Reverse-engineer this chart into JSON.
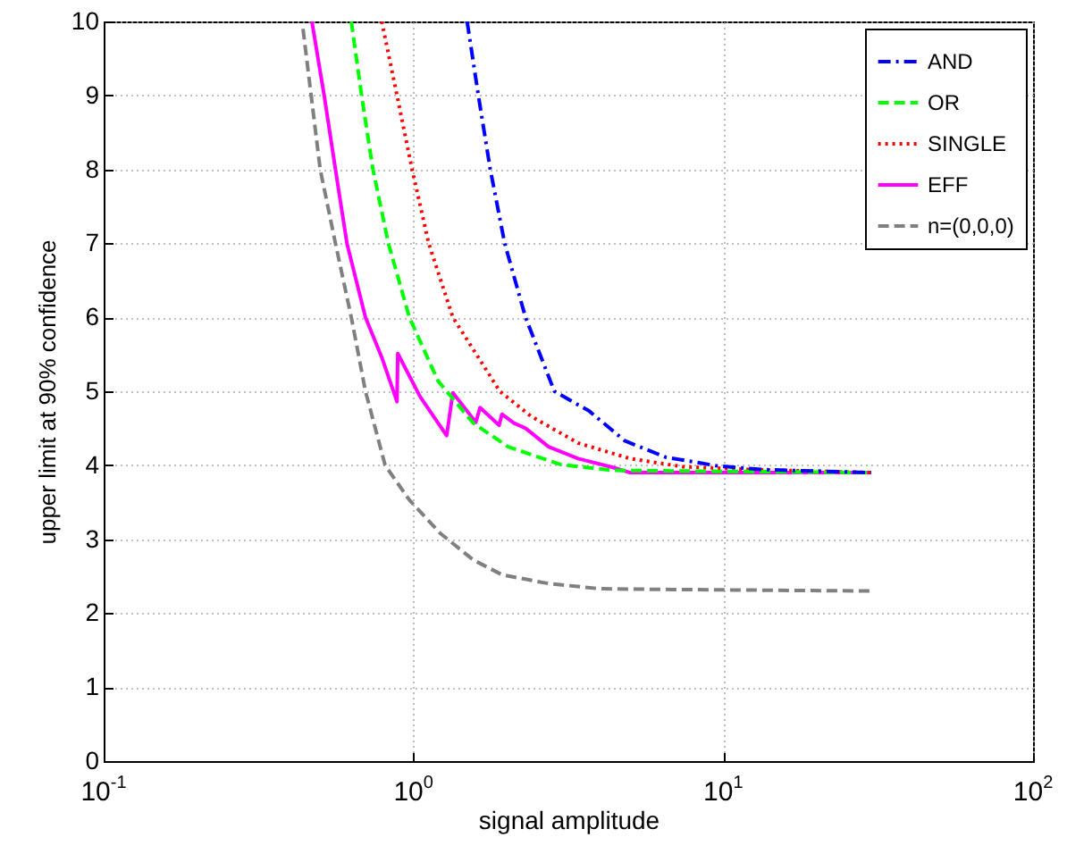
{
  "chart_data": {
    "type": "line",
    "xlabel": "signal amplitude",
    "ylabel": "upper limit at 90% confidence",
    "log": "x",
    "xlim": [
      0.1,
      100
    ],
    "ylim": [
      0,
      10
    ],
    "xticks": [
      {
        "value": 0.1,
        "label": "10$^{-1}$"
      },
      {
        "value": 1,
        "label": "10$^{0}$"
      },
      {
        "value": 10,
        "label": "10$^{1}$"
      },
      {
        "value": 100,
        "label": "10$^{2}$"
      }
    ],
    "yticks": [
      0,
      1,
      2,
      3,
      4,
      5,
      6,
      7,
      8,
      9,
      10
    ],
    "grid": true,
    "legend": "top right",
    "series": [
      {
        "name": "AND",
        "color": "#0000ff",
        "line_style": "dashdot",
        "x": [
          1.49,
          1.62,
          1.77,
          1.97,
          2.3,
          2.85,
          3.7,
          4.81,
          6.51,
          9.6,
          13.5,
          30
        ],
        "values": [
          10,
          9,
          8,
          7,
          6,
          5,
          4.73,
          4.33,
          4.11,
          3.99,
          3.94,
          3.9
        ]
      },
      {
        "name": "OR",
        "color": "#00ff00",
        "line_style": "dashed",
        "x": [
          0.63,
          0.68,
          0.74,
          0.83,
          0.97,
          1.2,
          1.56,
          2.02,
          2.98,
          4.41,
          30
        ],
        "values": [
          10,
          9,
          8,
          7,
          6,
          5.14,
          4.57,
          4.25,
          4.01,
          3.93,
          3.9
        ]
      },
      {
        "name": "SINGLE",
        "color": "#ff0000",
        "line_style": "dotted",
        "x": [
          0.79,
          0.885,
          0.99,
          1.12,
          1.34,
          1.9,
          2.4,
          3.4,
          5.0,
          7.4,
          12.5,
          30
        ],
        "values": [
          10,
          9,
          8,
          7,
          6,
          5.0,
          4.66,
          4.3,
          4.09,
          3.98,
          3.94,
          3.9
        ]
      },
      {
        "name": "EFF",
        "color": "#ff00ff",
        "line_style": "solid",
        "x": [
          0.47,
          0.515,
          0.56,
          0.61,
          0.7,
          0.79,
          0.885,
          0.89,
          1.05,
          1.28,
          1.34,
          1.59,
          1.64,
          1.89,
          1.93,
          2.11,
          2.3,
          2.73,
          3.4,
          4.41,
          5.0,
          30
        ],
        "values": [
          10,
          9,
          8,
          7,
          6,
          5.46,
          4.86,
          5.51,
          4.93,
          4.4,
          4.98,
          4.58,
          4.78,
          4.54,
          4.69,
          4.57,
          4.5,
          4.25,
          4.09,
          3.97,
          3.9,
          3.9
        ]
      },
      {
        "name": "n=(0,0,0)",
        "color": "#808080",
        "line_style": "dashed",
        "x": [
          0.44,
          0.5,
          0.56,
          0.63,
          0.7,
          0.81,
          0.97,
          1.22,
          1.56,
          1.93,
          2.73,
          4.0,
          6.8,
          30
        ],
        "values": [
          9.9,
          8,
          7,
          6,
          5,
          4,
          3.53,
          3.08,
          2.72,
          2.52,
          2.4,
          2.33,
          2.32,
          2.3
        ]
      }
    ]
  }
}
